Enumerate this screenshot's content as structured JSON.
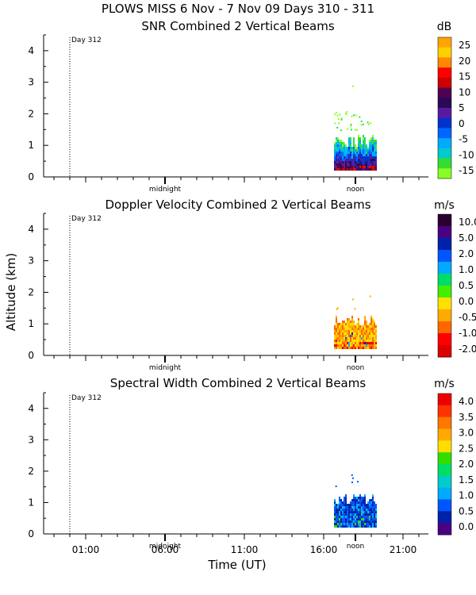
{
  "header": {
    "line1": "PLOWS MISS    6 Nov -   7 Nov 09 Days 310 - 311"
  },
  "figure": {
    "ylabel": "Altitude (km)",
    "xlabel": "Time (UT)",
    "y_ticks": [
      "0",
      "1",
      "2",
      "3",
      "4"
    ],
    "x_ticks": [
      "01:00",
      "06:00",
      "11:00",
      "16:00",
      "21:00"
    ],
    "marker_midnight": "midnight",
    "marker_noon": "noon",
    "day_label": "Day 312"
  },
  "chart_data": [
    {
      "type": "heatmap",
      "title": "SNR Combined 2 Vertical Beams",
      "units": "dB",
      "ylim": [
        0,
        4.5
      ],
      "x_ticks": [
        "01:00",
        "06:00",
        "11:00",
        "16:00",
        "21:00"
      ],
      "colorbar": {
        "labels": [
          "25",
          "20",
          "15",
          "10",
          "5",
          "0",
          "-5",
          "-10",
          "-15"
        ],
        "colors": [
          "#ffa500",
          "#ffd000",
          "#ff8800",
          "#ff0000",
          "#cc0000",
          "#500050",
          "#2a0a55",
          "#5a1aa0",
          "#0033cc",
          "#0066ff",
          "#00aaff",
          "#00cccc",
          "#33dd33",
          "#88ff22"
        ]
      },
      "data_region": {
        "x_start": "~16:20",
        "x_end": "~19:30",
        "alt_base_km": 0.15,
        "alt_top_km": 1.3,
        "max_echo_km": 2.9
      }
    },
    {
      "type": "heatmap",
      "title": "Doppler Velocity Combined 2 Vertical Beams",
      "units": "m/s",
      "ylim": [
        0,
        4.5
      ],
      "x_ticks": [
        "01:00",
        "06:00",
        "11:00",
        "16:00",
        "21:00"
      ],
      "colorbar": {
        "labels": [
          "10.0",
          "5.0",
          "2.0",
          "1.0",
          "0.5",
          "0.0",
          "-0.5",
          "-1.0",
          "-2.0"
        ],
        "colors": [
          "#2a0030",
          "#4b0082",
          "#0022aa",
          "#0055ff",
          "#00aaff",
          "#00dd66",
          "#44ee00",
          "#ffe000",
          "#ffaa00",
          "#ff6600",
          "#ff0000",
          "#dd0000"
        ]
      },
      "data_region": {
        "x_start": "~16:20",
        "x_end": "~19:30",
        "alt_base_km": 0.15,
        "alt_top_km": 1.25,
        "max_echo_km": 1.8
      }
    },
    {
      "type": "heatmap",
      "title": "Spectral Width Combined 2 Vertical Beams",
      "units": "m/s",
      "ylim": [
        0,
        4.5
      ],
      "x_ticks": [
        "01:00",
        "06:00",
        "11:00",
        "16:00",
        "21:00"
      ],
      "colorbar": {
        "labels": [
          "4.0",
          "3.5",
          "3.0",
          "2.5",
          "2.0",
          "1.5",
          "1.0",
          "0.5",
          "0.0"
        ],
        "colors": [
          "#ee0000",
          "#ff3300",
          "#ff7700",
          "#ffaa00",
          "#ffdd00",
          "#33dd00",
          "#00dd66",
          "#00cccc",
          "#00aaff",
          "#0055ff",
          "#0022aa",
          "#4b0082"
        ]
      },
      "data_region": {
        "x_start": "~16:20",
        "x_end": "~19:30",
        "alt_base_km": 0.15,
        "alt_top_km": 1.25,
        "max_echo_km": 1.8
      }
    }
  ]
}
